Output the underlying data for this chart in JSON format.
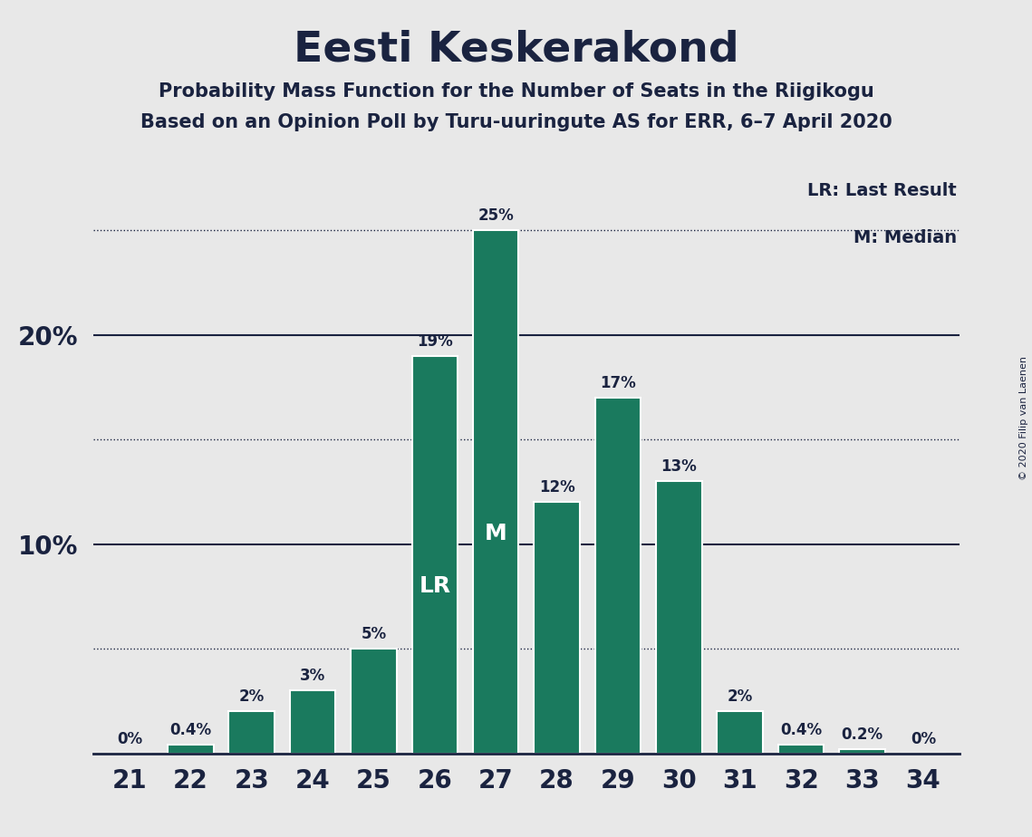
{
  "title": "Eesti Keskerakond",
  "subtitle1": "Probability Mass Function for the Number of Seats in the Riigikogu",
  "subtitle2": "Based on an Opinion Poll by Turu-uuringute AS for ERR, 6–7 April 2020",
  "copyright": "© 2020 Filip van Laenen",
  "categories": [
    21,
    22,
    23,
    24,
    25,
    26,
    27,
    28,
    29,
    30,
    31,
    32,
    33,
    34
  ],
  "values": [
    0.0,
    0.4,
    2.0,
    3.0,
    5.0,
    19.0,
    25.0,
    12.0,
    17.0,
    13.0,
    2.0,
    0.4,
    0.2,
    0.0
  ],
  "labels": [
    "0%",
    "0.4%",
    "2%",
    "3%",
    "5%",
    "19%",
    "25%",
    "12%",
    "17%",
    "13%",
    "2%",
    "0.4%",
    "0.2%",
    "0%"
  ],
  "bar_color": "#1a7a5e",
  "background_color": "#e8e8e8",
  "text_color": "#1a2340",
  "lr_seat": 26,
  "median_seat": 27,
  "yticks": [
    10,
    20
  ],
  "dotted_lines": [
    5,
    15,
    25
  ],
  "ylim": [
    0,
    28
  ],
  "legend_lr": "LR: Last Result",
  "legend_m": "M: Median"
}
